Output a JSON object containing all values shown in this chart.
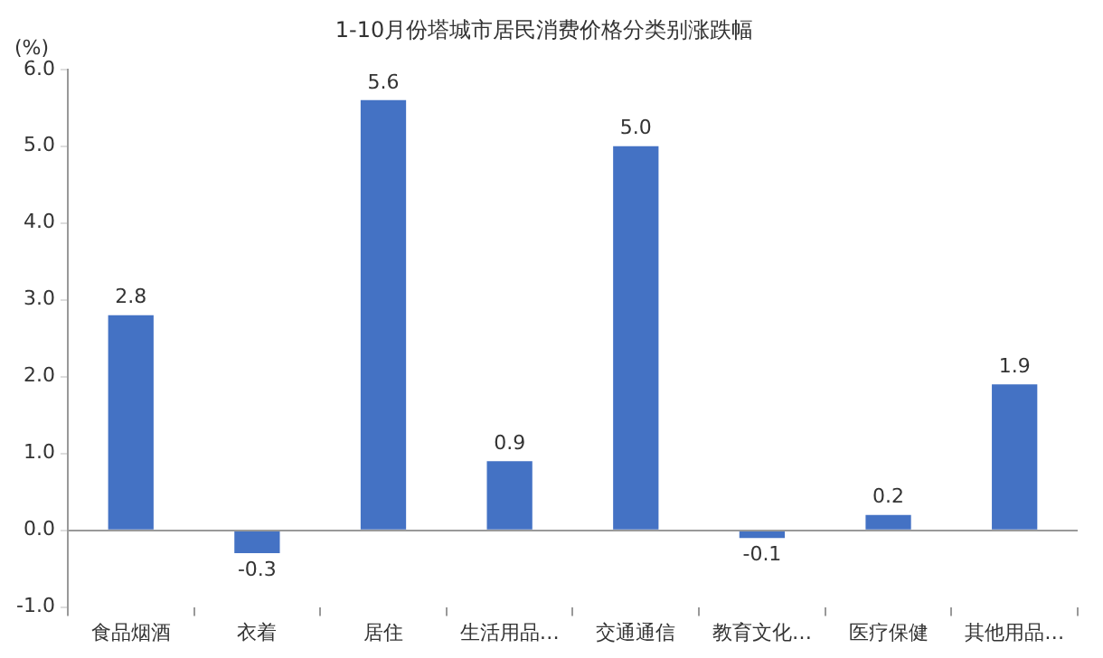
{
  "chart_data": {
    "type": "bar",
    "title": "1-10月份塔城市居民消费价格分类别涨跌幅",
    "ylabel": "(%)",
    "categories": [
      "食品烟酒",
      "衣着",
      "居住",
      "生活用品…",
      "交通通信",
      "教育文化…",
      "医疗保健",
      "其他用品…"
    ],
    "values": [
      2.8,
      -0.3,
      5.6,
      0.9,
      5.0,
      -0.1,
      0.2,
      1.9
    ],
    "color": "#4472c4",
    "ylim": [
      -1,
      6
    ],
    "yticks": [
      {
        "value": -1,
        "label": "-1.0"
      },
      {
        "value": 0,
        "label": "0.0"
      },
      {
        "value": 1,
        "label": "1.0"
      },
      {
        "value": 2,
        "label": "2.0"
      },
      {
        "value": 3,
        "label": "3.0"
      },
      {
        "value": 4,
        "label": "4.0"
      },
      {
        "value": 5,
        "label": "5.0"
      },
      {
        "value": 6,
        "label": "6.0"
      }
    ],
    "value_labels": [
      "2.8",
      "-0.3",
      "5.6",
      "0.9",
      "5.0",
      "-0.1",
      "0.2",
      "1.9"
    ],
    "ref_lines": [
      {
        "axis": "y",
        "value": 0,
        "color": "#999999"
      }
    ],
    "grid": false,
    "legend": false
  }
}
